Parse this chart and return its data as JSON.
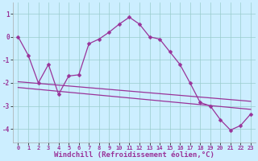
{
  "xlabel": "Windchill (Refroidissement éolien,°C)",
  "bg_color": "#cceeff",
  "line_color": "#993399",
  "x_ticks": [
    0,
    1,
    2,
    3,
    4,
    5,
    6,
    7,
    8,
    9,
    10,
    11,
    12,
    13,
    14,
    15,
    16,
    17,
    18,
    19,
    20,
    21,
    22,
    23
  ],
  "y_ticks": [
    -4,
    -3,
    -2,
    -1,
    0,
    1
  ],
  "ylim": [
    -4.6,
    1.5
  ],
  "xlim": [
    -0.5,
    23.5
  ],
  "line1_x": [
    0,
    1,
    2,
    3,
    4,
    5,
    6,
    7,
    8,
    9,
    10,
    11,
    12,
    13,
    14,
    15,
    16,
    17,
    18,
    19,
    20,
    21,
    22,
    23
  ],
  "line1_y": [
    0.0,
    -0.8,
    -2.0,
    -1.2,
    -2.5,
    -1.7,
    -1.65,
    -0.3,
    -0.1,
    0.2,
    0.55,
    0.85,
    0.55,
    0.0,
    -0.1,
    -0.65,
    -1.2,
    -2.0,
    -2.85,
    -3.0,
    -3.6,
    -4.05,
    -3.85,
    -3.35
  ],
  "line2_x": [
    0,
    23
  ],
  "line2_y": [
    -1.95,
    -2.8
  ],
  "line3_x": [
    0,
    23
  ],
  "line3_y": [
    -2.2,
    -3.15
  ],
  "tick_fontsize": 5.0,
  "xlabel_fontsize": 6.5,
  "grid_color": "#99cccc",
  "marker": "D",
  "marker_size": 2.5,
  "linewidth": 0.9
}
